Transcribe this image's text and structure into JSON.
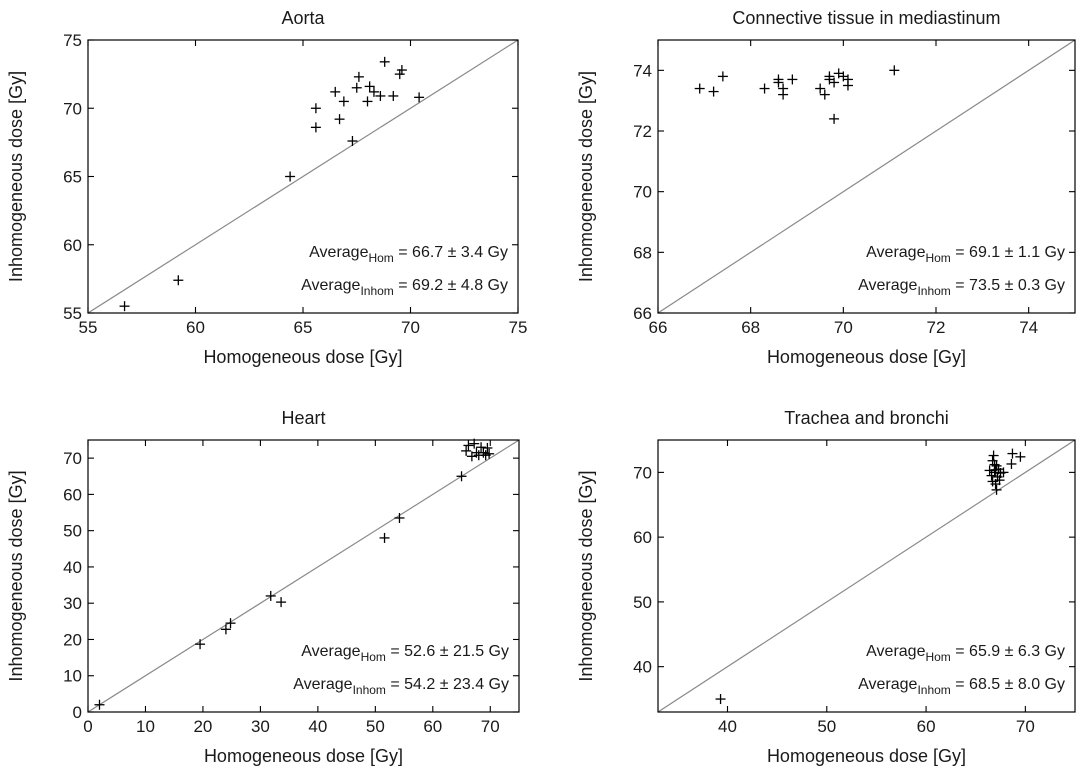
{
  "chart_data": [
    {
      "type": "scatter",
      "title": "Aorta",
      "xlabel": "Homogeneous dose [Gy]",
      "ylabel": "Inhomogeneous dose [Gy]",
      "xlim": [
        55,
        75
      ],
      "ylim": [
        55,
        75
      ],
      "xticks": [
        55,
        60,
        65,
        70,
        75
      ],
      "yticks": [
        55,
        60,
        65,
        70,
        75
      ],
      "identity_line": true,
      "marker": "plus",
      "annotations": [
        {
          "prefix": "Average",
          "sub": "Hom",
          "text": " = 66.7 ± 3.4 Gy"
        },
        {
          "prefix": "Average",
          "sub": "Inhom",
          "text": " = 69.2 ± 4.8 Gy"
        }
      ],
      "points": [
        [
          56.7,
          55.5
        ],
        [
          59.2,
          57.4
        ],
        [
          64.4,
          65.0
        ],
        [
          65.6,
          70.0
        ],
        [
          65.6,
          68.6
        ],
        [
          66.5,
          71.2
        ],
        [
          66.7,
          69.2
        ],
        [
          66.9,
          70.5
        ],
        [
          67.3,
          67.6
        ],
        [
          67.5,
          71.5
        ],
        [
          67.6,
          72.3
        ],
        [
          68.0,
          70.5
        ],
        [
          68.1,
          71.6
        ],
        [
          68.3,
          71.2
        ],
        [
          68.6,
          70.9
        ],
        [
          68.8,
          73.4
        ],
        [
          69.2,
          70.9
        ],
        [
          69.5,
          72.5
        ],
        [
          69.6,
          72.8
        ],
        [
          70.4,
          70.8
        ]
      ]
    },
    {
      "type": "scatter",
      "title": "Connective tissue in mediastinum",
      "xlabel": "Homogeneous dose [Gy]",
      "ylabel": "Inhomogeneous dose [Gy]",
      "xlim": [
        66,
        75
      ],
      "ylim": [
        66,
        75
      ],
      "xticks": [
        66,
        68,
        70,
        72,
        74
      ],
      "yticks": [
        66,
        68,
        70,
        72,
        74
      ],
      "identity_line": true,
      "marker": "plus",
      "annotations": [
        {
          "prefix": "Average",
          "sub": "Hom",
          "text": " = 69.1 ± 1.1 Gy"
        },
        {
          "prefix": "Average",
          "sub": "Inhom",
          "text": " = 73.5 ± 0.3 Gy"
        }
      ],
      "points": [
        [
          66.9,
          73.4
        ],
        [
          67.2,
          73.3
        ],
        [
          67.4,
          73.8
        ],
        [
          68.3,
          73.4
        ],
        [
          68.6,
          73.7
        ],
        [
          68.6,
          73.6
        ],
        [
          68.7,
          73.4
        ],
        [
          68.7,
          73.2
        ],
        [
          68.9,
          73.7
        ],
        [
          69.5,
          73.4
        ],
        [
          69.6,
          73.2
        ],
        [
          69.7,
          73.7
        ],
        [
          69.7,
          73.8
        ],
        [
          69.8,
          73.6
        ],
        [
          69.8,
          72.4
        ],
        [
          69.9,
          73.9
        ],
        [
          70.0,
          73.8
        ],
        [
          70.1,
          73.5
        ],
        [
          70.1,
          73.7
        ],
        [
          71.1,
          74.0
        ]
      ]
    },
    {
      "type": "scatter",
      "title": "Heart",
      "xlabel": "Homogeneous dose [Gy]",
      "ylabel": "Inhomogeneous dose [Gy]",
      "xlim": [
        0,
        75
      ],
      "ylim": [
        0,
        75
      ],
      "xticks": [
        0,
        10,
        20,
        30,
        40,
        50,
        60,
        70
      ],
      "yticks": [
        0,
        10,
        20,
        30,
        40,
        50,
        60,
        70
      ],
      "identity_line": true,
      "marker": "plus",
      "annotations": [
        {
          "prefix": "Average",
          "sub": "Hom",
          "text": " = 52.6 ± 21.5 Gy"
        },
        {
          "prefix": "Average",
          "sub": "Inhom",
          "text": " = 54.2 ± 23.4 Gy"
        }
      ],
      "points": [
        [
          2.0,
          2.0
        ],
        [
          19.5,
          18.7
        ],
        [
          24.0,
          22.8
        ],
        [
          24.8,
          24.5
        ],
        [
          31.8,
          32.0
        ],
        [
          33.6,
          30.3
        ],
        [
          51.6,
          48.0
        ],
        [
          54.2,
          53.5
        ],
        [
          65.0,
          65.0
        ],
        [
          65.8,
          72.0
        ],
        [
          66.2,
          73.5
        ],
        [
          66.8,
          70.5
        ],
        [
          67.2,
          74.0
        ],
        [
          67.6,
          71.5
        ],
        [
          68.0,
          70.8
        ],
        [
          68.4,
          73.0
        ],
        [
          68.8,
          71.5
        ],
        [
          69.2,
          70.8
        ],
        [
          69.5,
          72.8
        ],
        [
          69.8,
          71.2
        ]
      ]
    },
    {
      "type": "scatter",
      "title": "Trachea and bronchi",
      "xlabel": "Homogeneous dose [Gy]",
      "ylabel": "Inhomogeneous dose [Gy]",
      "xlim": [
        33,
        75
      ],
      "ylim": [
        33,
        75
      ],
      "xticks": [
        40,
        50,
        60,
        70
      ],
      "yticks": [
        40,
        50,
        60,
        70
      ],
      "identity_line": true,
      "marker": "plus",
      "annotations": [
        {
          "prefix": "Average",
          "sub": "Hom",
          "text": " = 65.9 ± 6.3 Gy"
        },
        {
          "prefix": "Average",
          "sub": "Inhom",
          "text": " = 68.5 ± 8.0 Gy"
        }
      ],
      "points": [
        [
          39.3,
          35.0
        ],
        [
          66.4,
          70.3
        ],
        [
          66.6,
          69.5
        ],
        [
          66.7,
          71.8
        ],
        [
          66.7,
          68.6
        ],
        [
          66.8,
          72.6
        ],
        [
          66.9,
          70.0
        ],
        [
          67.0,
          68.2
        ],
        [
          67.1,
          71.0
        ],
        [
          67.1,
          67.3
        ],
        [
          67.2,
          69.3
        ],
        [
          67.3,
          70.5
        ],
        [
          67.4,
          68.8
        ],
        [
          67.8,
          70.0
        ],
        [
          68.6,
          71.3
        ],
        [
          68.7,
          72.9
        ],
        [
          69.5,
          72.4
        ],
        [
          67.0,
          70.4
        ],
        [
          67.5,
          69.9
        ],
        [
          66.9,
          71.2
        ]
      ]
    }
  ]
}
